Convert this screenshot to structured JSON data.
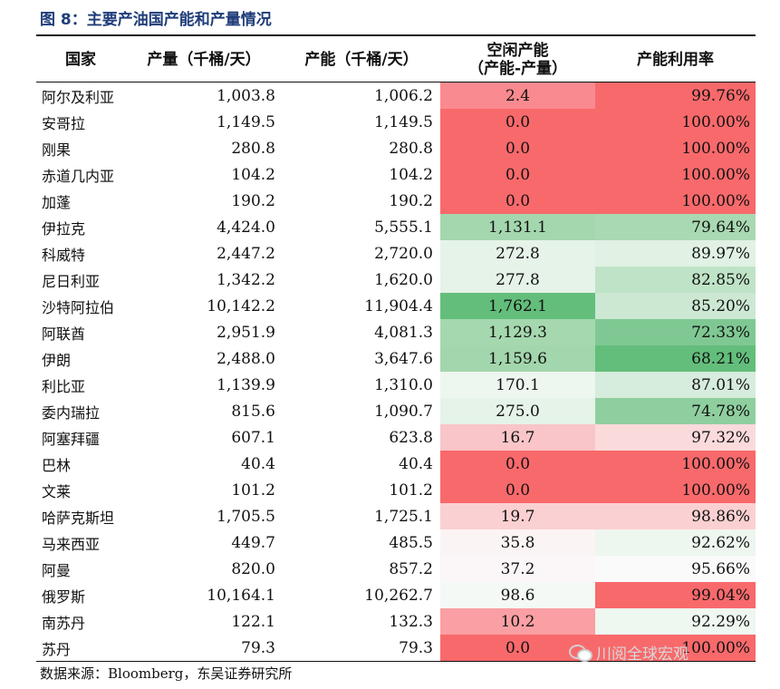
{
  "title": "图 8：主要产油国产能和产量情况",
  "headers": {
    "country": "国家",
    "production": "产量（千桶/天）",
    "capacity": "产能（千桶/天）",
    "spare_line1": "空闲产能",
    "spare_line2": "（产能-产量）",
    "utilization": "产能利用率"
  },
  "rows": [
    {
      "country": "阿尔及利亚",
      "production": "1,003.8",
      "capacity": "1,006.2",
      "spare": "2.4",
      "utilization": "99.76%",
      "spare_color": "#f98a8f",
      "util_color": "#f8696b"
    },
    {
      "country": "安哥拉",
      "production": "1,149.5",
      "capacity": "1,149.5",
      "spare": "0.0",
      "utilization": "100.00%",
      "spare_color": "#f8696b",
      "util_color": "#f8696b"
    },
    {
      "country": "刚果",
      "production": "280.8",
      "capacity": "280.8",
      "spare": "0.0",
      "utilization": "100.00%",
      "spare_color": "#f8696b",
      "util_color": "#f8696b"
    },
    {
      "country": "赤道几内亚",
      "production": "104.2",
      "capacity": "104.2",
      "spare": "0.0",
      "utilization": "100.00%",
      "spare_color": "#f8696b",
      "util_color": "#f8696b"
    },
    {
      "country": "加蓬",
      "production": "190.2",
      "capacity": "190.2",
      "spare": "0.0",
      "utilization": "100.00%",
      "spare_color": "#f8696b",
      "util_color": "#f8696b"
    },
    {
      "country": "伊拉克",
      "production": "4,424.0",
      "capacity": "5,555.1",
      "spare": "1,131.1",
      "utilization": "79.64%",
      "spare_color": "#a4d7ae",
      "util_color": "#a8d9b2"
    },
    {
      "country": "科威特",
      "production": "2,447.2",
      "capacity": "2,720.0",
      "spare": "272.8",
      "utilization": "89.97%",
      "spare_color": "#e6f3e9",
      "util_color": "#e1f1e4"
    },
    {
      "country": "尼日利亚",
      "production": "1,342.2",
      "capacity": "1,620.0",
      "spare": "277.8",
      "utilization": "82.85%",
      "spare_color": "#e5f3e8",
      "util_color": "#bfe3c7"
    },
    {
      "country": "沙特阿拉伯",
      "production": "10,142.2",
      "capacity": "11,904.4",
      "spare": "1,762.1",
      "utilization": "85.20%",
      "spare_color": "#63be7b",
      "util_color": "#cce8d3"
    },
    {
      "country": "阿联酋",
      "production": "2,951.9",
      "capacity": "4,081.3",
      "spare": "1,129.3",
      "utilization": "72.33%",
      "spare_color": "#a5d8ae",
      "util_color": "#7fc893"
    },
    {
      "country": "伊朗",
      "production": "2,488.0",
      "capacity": "3,647.6",
      "spare": "1,159.6",
      "utilization": "68.21%",
      "spare_color": "#a2d6ac",
      "util_color": "#63be7b"
    },
    {
      "country": "利比亚",
      "production": "1,139.9",
      "capacity": "1,310.0",
      "spare": "170.1",
      "utilization": "87.01%",
      "spare_color": "#edf6ef",
      "util_color": "#d6ecdc"
    },
    {
      "country": "委内瑞拉",
      "production": "815.6",
      "capacity": "1,090.7",
      "spare": "275.0",
      "utilization": "74.78%",
      "spare_color": "#e5f3e8",
      "util_color": "#8fcf9f"
    },
    {
      "country": "阿塞拜疆",
      "production": "607.1",
      "capacity": "623.8",
      "spare": "16.7",
      "utilization": "97.32%",
      "spare_color": "#f9c5c8",
      "util_color": "#fbdadb"
    },
    {
      "country": "巴林",
      "production": "40.4",
      "capacity": "40.4",
      "spare": "0.0",
      "utilization": "100.00%",
      "spare_color": "#f8696b",
      "util_color": "#f8696b"
    },
    {
      "country": "文莱",
      "production": "101.2",
      "capacity": "101.2",
      "spare": "0.0",
      "utilization": "100.00%",
      "spare_color": "#f8696b",
      "util_color": "#f8696b"
    },
    {
      "country": "哈萨克斯坦",
      "production": "1,705.5",
      "capacity": "1,725.1",
      "spare": "19.7",
      "utilization": "98.86%",
      "spare_color": "#fad0d2",
      "util_color": "#fbd0d2"
    },
    {
      "country": "马来西亚",
      "production": "449.7",
      "capacity": "485.5",
      "spare": "35.8",
      "utilization": "92.62%",
      "spare_color": "#fbf4f5",
      "util_color": "#edf6ef"
    },
    {
      "country": "阿曼",
      "production": "820.0",
      "capacity": "857.2",
      "spare": "37.2",
      "utilization": "95.66%",
      "spare_color": "#fbf6f7",
      "util_color": "#fbfafb"
    },
    {
      "country": "俄罗斯",
      "production": "10,164.1",
      "capacity": "10,262.7",
      "spare": "98.6",
      "utilization": "99.04%",
      "spare_color": "#f4f9f5",
      "util_color": "#f8696b"
    },
    {
      "country": "南苏丹",
      "production": "122.1",
      "capacity": "132.3",
      "spare": "10.2",
      "utilization": "92.29%",
      "spare_color": "#fa9fa3",
      "util_color": "#eef7f0"
    },
    {
      "country": "苏丹",
      "production": "79.3",
      "capacity": "79.3",
      "spare": "0.0",
      "utilization": "100.00%",
      "spare_color": "#f8696b",
      "util_color": "#f8696b"
    }
  ],
  "source": "数据来源：Bloomberg，东吴证券研究所",
  "watermark": {
    "icon": "wechat-icon",
    "text": "川阅全球宏观"
  }
}
